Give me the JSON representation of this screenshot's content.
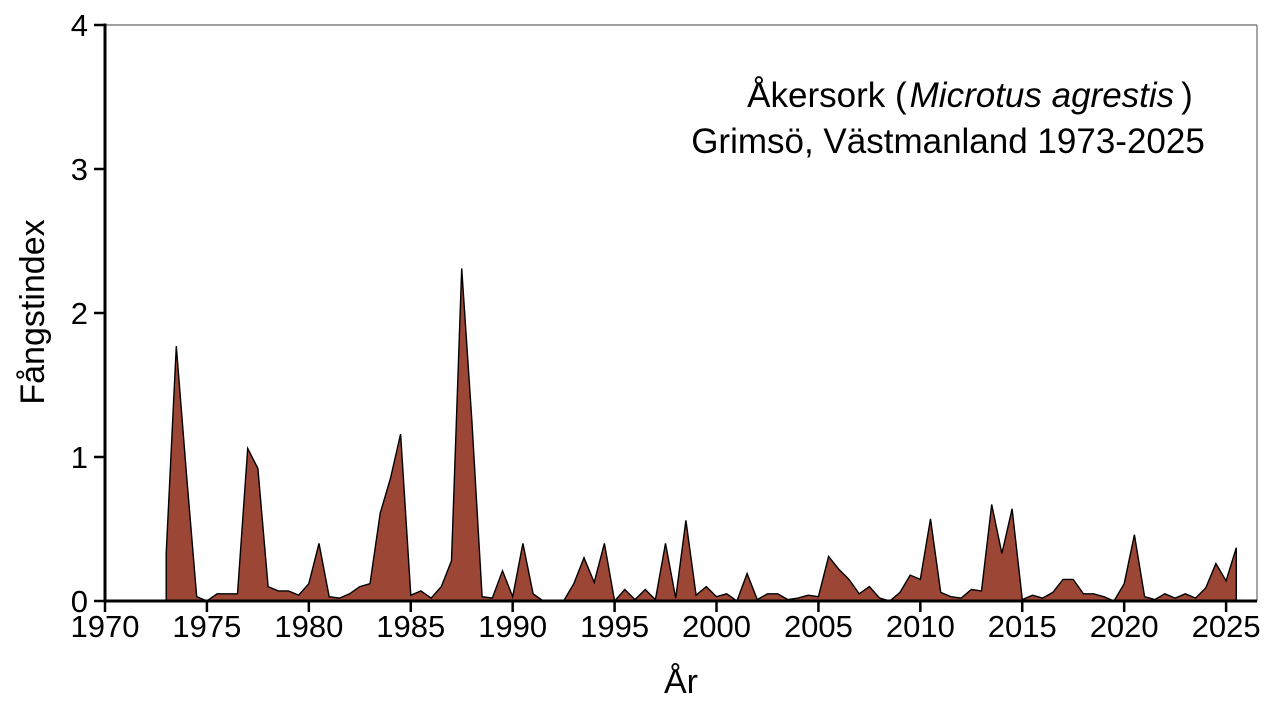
{
  "chart_data": {
    "type": "area",
    "title": {
      "prefix": "Åkersork (",
      "italic": "Microtus agrestis",
      "suffix": ")"
    },
    "subtitle": "Grimsö, Västmanland 1973-2025",
    "xlabel": "År",
    "ylabel": "Fångstindex",
    "xlim": [
      1970,
      2026.5
    ],
    "ylim": [
      0,
      4
    ],
    "xticks": [
      1970,
      1975,
      1980,
      1985,
      1990,
      1995,
      2000,
      2005,
      2010,
      2015,
      2020,
      2025
    ],
    "yticks": [
      0,
      1,
      2,
      3,
      4
    ],
    "grid": false,
    "legend": "none",
    "samples_per_year": "spring and fall (half-year steps)",
    "x": [
      1973,
      1973.5,
      1974,
      1974.5,
      1975,
      1975.5,
      1976,
      1976.5,
      1977,
      1977.5,
      1978,
      1978.5,
      1979,
      1979.5,
      1980,
      1980.5,
      1981,
      1981.5,
      1982,
      1982.5,
      1983,
      1983.5,
      1984,
      1984.5,
      1985,
      1985.5,
      1986,
      1986.5,
      1987,
      1987.5,
      1988,
      1988.5,
      1989,
      1989.5,
      1990,
      1990.5,
      1991,
      1991.5,
      1992,
      1992.5,
      1993,
      1993.5,
      1994,
      1994.5,
      1995,
      1995.5,
      1996,
      1996.5,
      1997,
      1997.5,
      1998,
      1998.5,
      1999,
      1999.5,
      2000,
      2000.5,
      2001,
      2001.5,
      2002,
      2002.5,
      2003,
      2003.5,
      2004,
      2004.5,
      2005,
      2005.5,
      2006,
      2006.5,
      2007,
      2007.5,
      2008,
      2008.5,
      2009,
      2009.5,
      2010,
      2010.5,
      2011,
      2011.5,
      2012,
      2012.5,
      2013,
      2013.5,
      2014,
      2014.5,
      2015,
      2015.5,
      2016,
      2016.5,
      2017,
      2017.5,
      2018,
      2018.5,
      2019,
      2019.5,
      2020,
      2020.5,
      2021,
      2021.5,
      2022,
      2022.5,
      2023,
      2023.5,
      2024,
      2024.5,
      2025,
      2025.5
    ],
    "values": [
      0.33,
      1.77,
      0.88,
      0.03,
      0.0,
      0.05,
      0.05,
      0.05,
      1.06,
      0.92,
      0.1,
      0.07,
      0.07,
      0.04,
      0.12,
      0.4,
      0.03,
      0.02,
      0.05,
      0.1,
      0.12,
      0.61,
      0.85,
      1.16,
      0.04,
      0.07,
      0.02,
      0.1,
      0.28,
      2.31,
      1.25,
      0.03,
      0.02,
      0.21,
      0.03,
      0.4,
      0.05,
      0.0,
      0.0,
      0.0,
      0.12,
      0.3,
      0.13,
      0.4,
      0.0,
      0.08,
      0.01,
      0.08,
      0.01,
      0.4,
      0.02,
      0.56,
      0.04,
      0.1,
      0.03,
      0.05,
      0.0,
      0.19,
      0.01,
      0.05,
      0.05,
      0.01,
      0.02,
      0.04,
      0.03,
      0.31,
      0.22,
      0.15,
      0.05,
      0.1,
      0.02,
      0.0,
      0.06,
      0.18,
      0.15,
      0.57,
      0.06,
      0.03,
      0.02,
      0.08,
      0.07,
      0.67,
      0.33,
      0.64,
      0.01,
      0.04,
      0.02,
      0.06,
      0.15,
      0.15,
      0.05,
      0.05,
      0.03,
      0.0,
      0.12,
      0.46,
      0.03,
      0.01,
      0.05,
      0.02,
      0.05,
      0.02,
      0.09,
      0.26,
      0.14,
      0.37
    ],
    "colors": {
      "fill": "#9c4636",
      "outline": "#000000",
      "axis": "#000000",
      "frame": "#808080",
      "text": "#000000",
      "background": "#ffffff"
    }
  }
}
